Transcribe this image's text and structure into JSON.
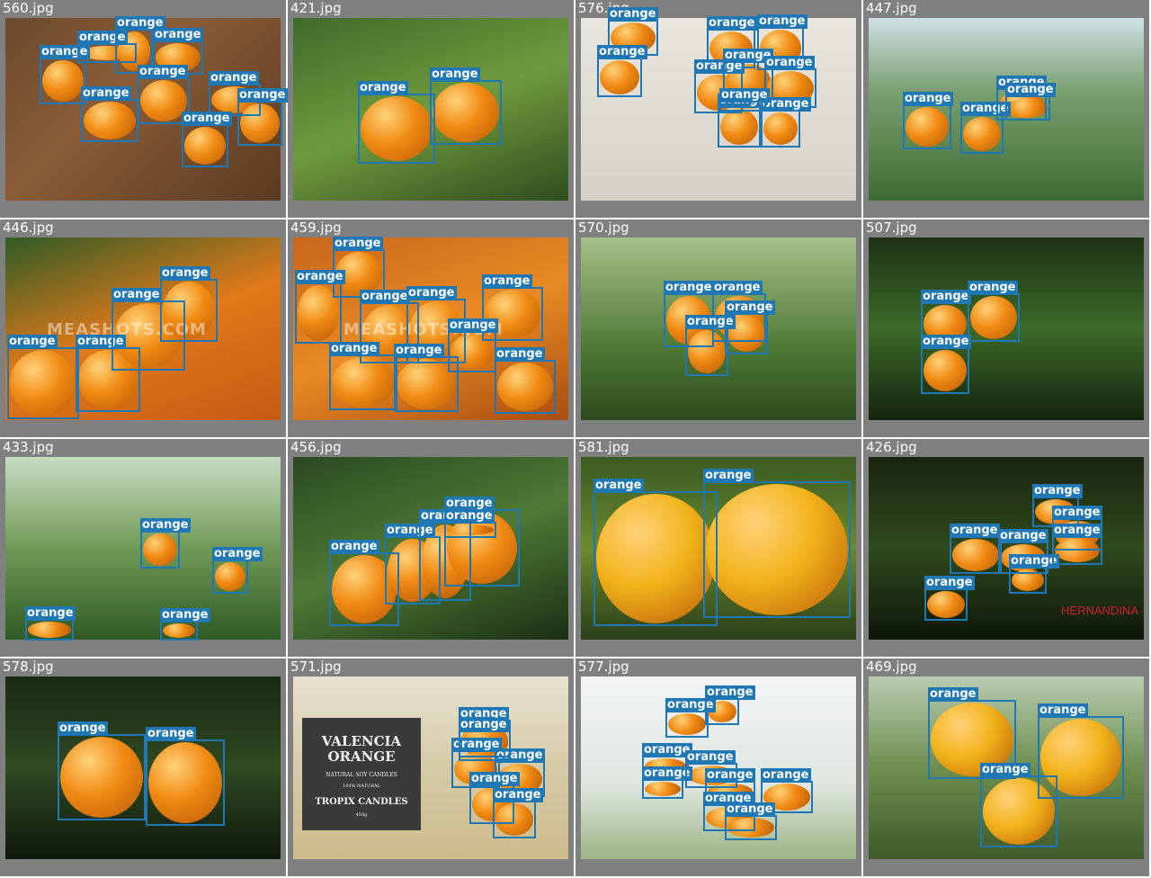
{
  "label": "orange",
  "tiles": [
    {
      "file": "560.jpg",
      "count": 11
    },
    {
      "file": "421.jpg",
      "count": 2
    },
    {
      "file": "576.jpg",
      "count": 11
    },
    {
      "file": "447.jpg",
      "count": 5
    },
    {
      "file": "446.jpg",
      "count": 5
    },
    {
      "file": "459.jpg",
      "count": 10
    },
    {
      "file": "570.jpg",
      "count": 4
    },
    {
      "file": "507.jpg",
      "count": 3
    },
    {
      "file": "433.jpg",
      "count": 4
    },
    {
      "file": "456.jpg",
      "count": 5
    },
    {
      "file": "581.jpg",
      "count": 2
    },
    {
      "file": "426.jpg",
      "count": 7
    },
    {
      "file": "578.jpg",
      "count": 2
    },
    {
      "file": "571.jpg",
      "count": 6
    },
    {
      "file": "577.jpg",
      "count": 11
    },
    {
      "file": "469.jpg",
      "count": 3
    }
  ],
  "texts": {
    "t446_watermark": "MEASHOTS.COM",
    "t459_watermark": "MEASHOTS.COM",
    "t426_watermark": "HERNANDINA",
    "t571_title": "VALENCIA ORANGE",
    "t571_sub1": "NATURAL SOY CANDLES",
    "t571_sub2": "100% NATURAL",
    "t571_brand": "TROPIX CANDLES",
    "t571_weight": "450g"
  },
  "colors": {
    "box": "#1f77b4",
    "tile_bg": "#808080",
    "label_text": "#ffffff"
  }
}
